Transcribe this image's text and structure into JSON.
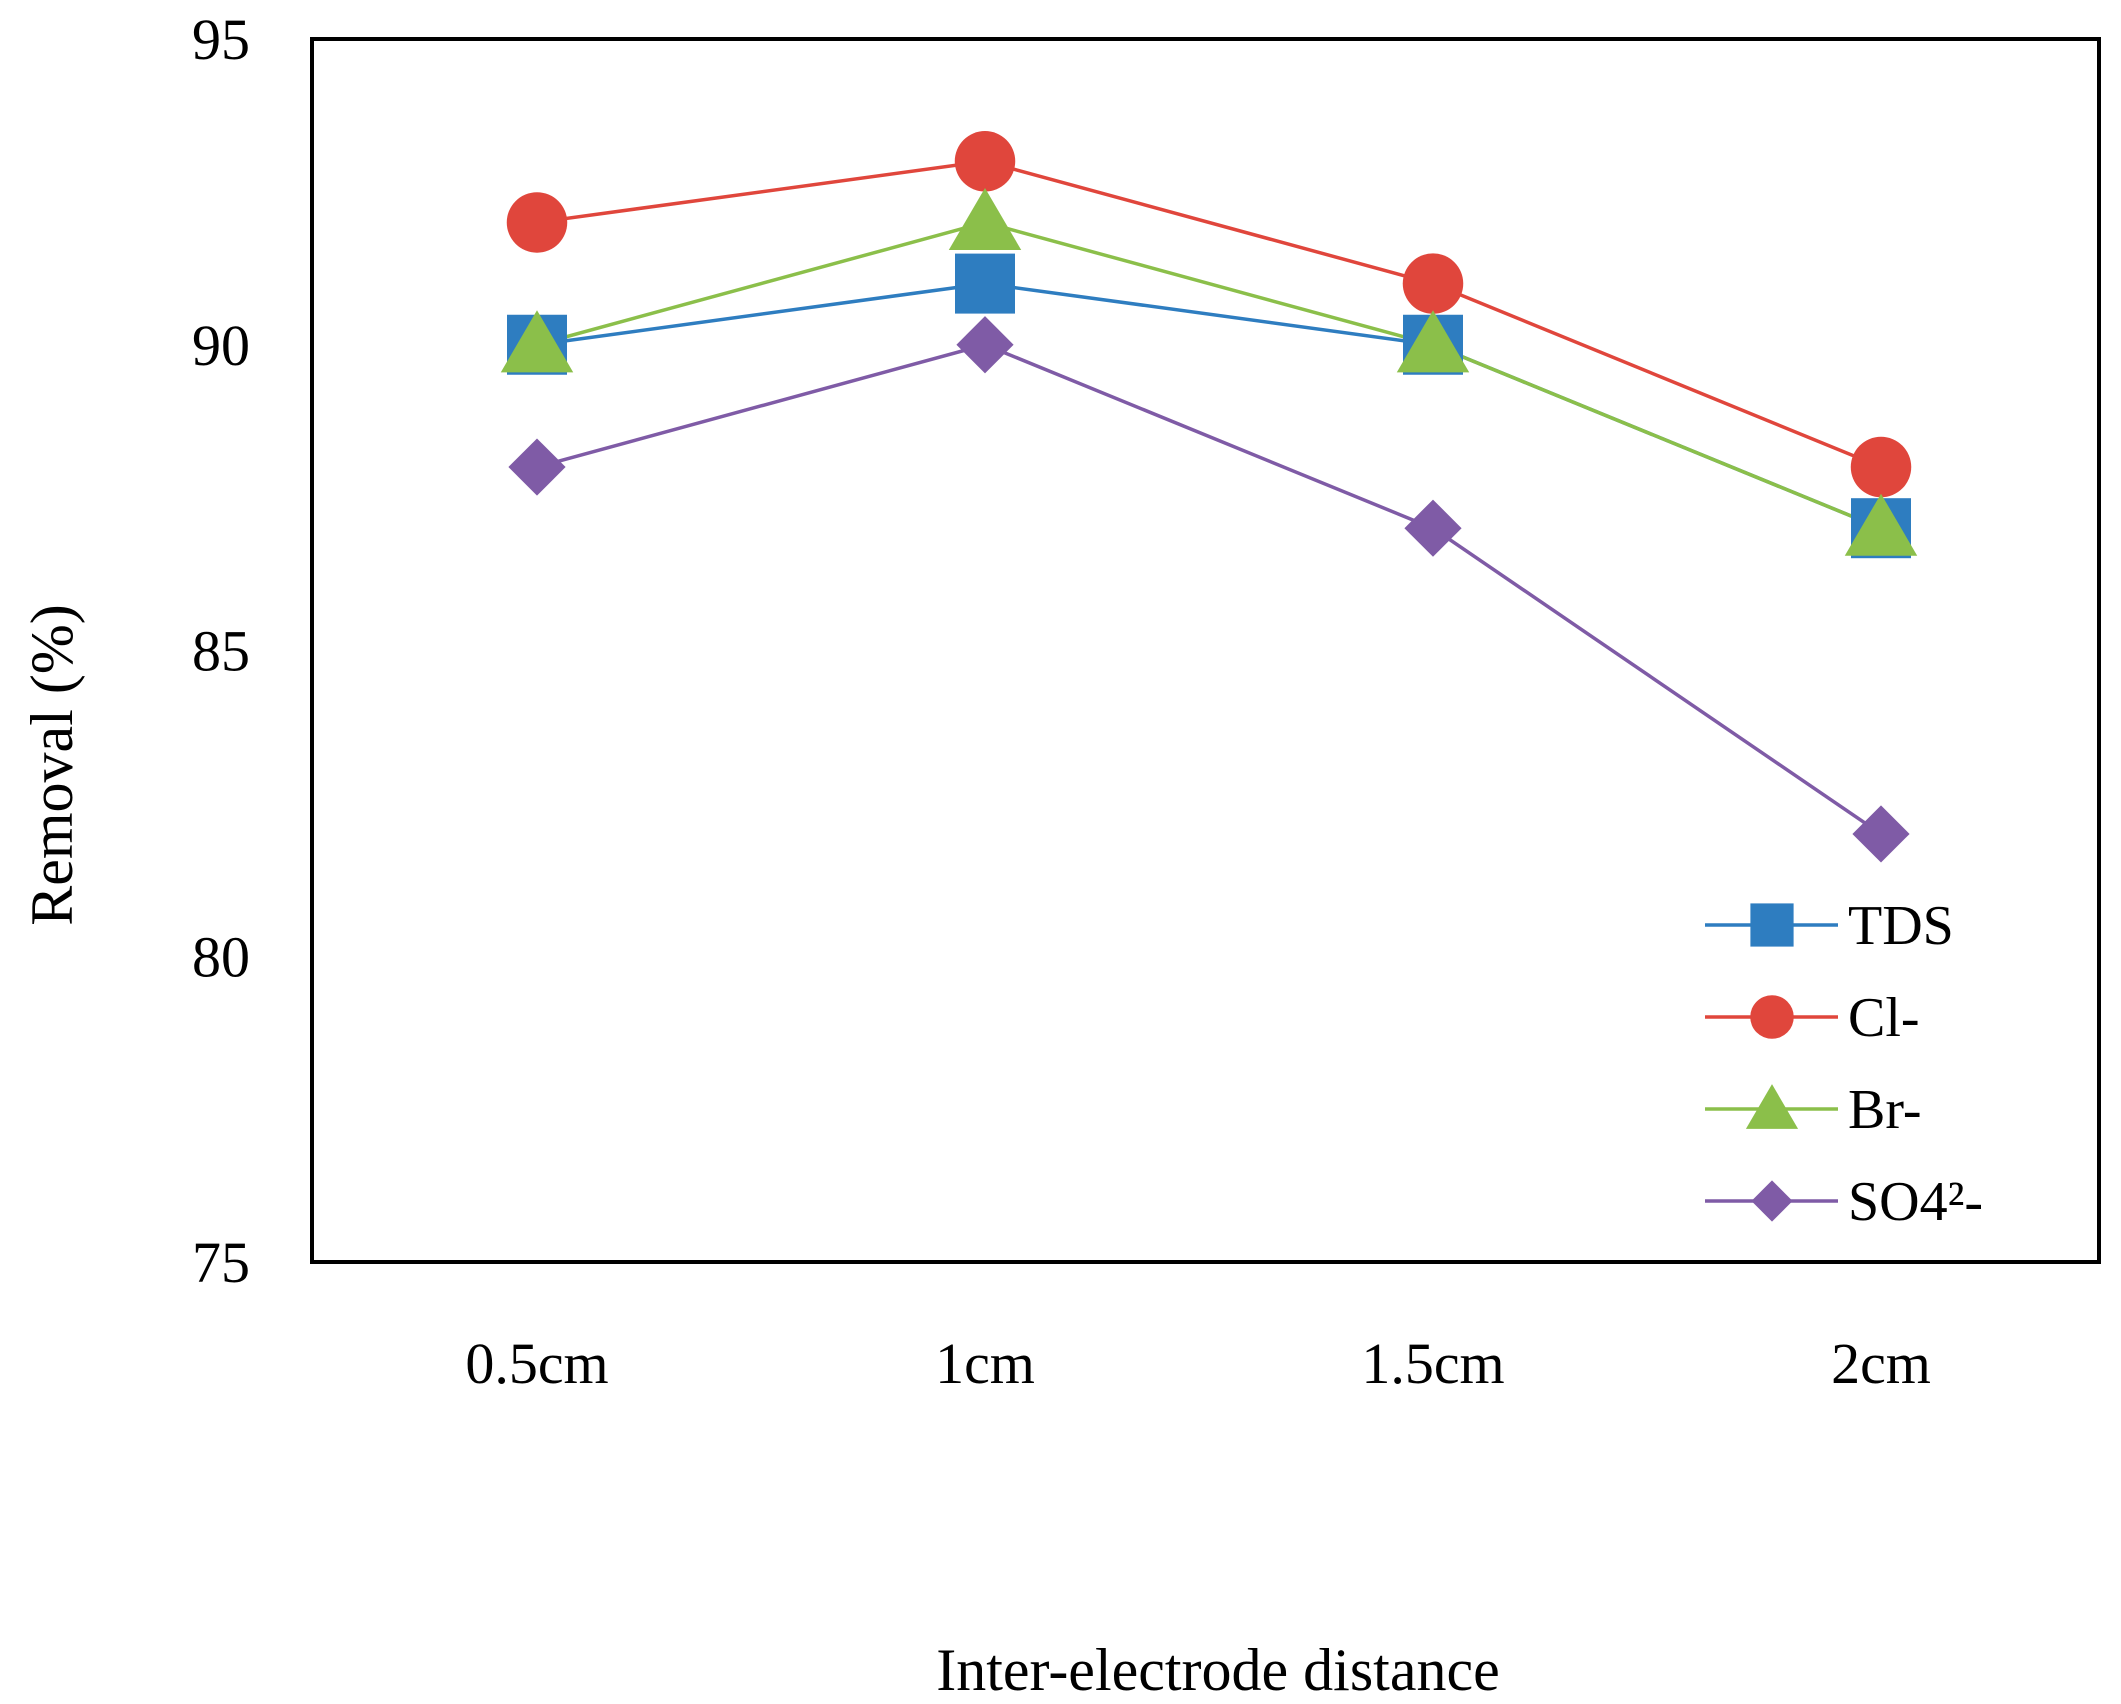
{
  "chart_data": {
    "type": "line",
    "title": "",
    "xlabel": "Inter-electrode distance",
    "ylabel": "Removal (%)",
    "categories": [
      "0.5cm",
      "1cm",
      "1.5cm",
      "2cm"
    ],
    "ylim": [
      75,
      95
    ],
    "yticks": [
      75,
      80,
      85,
      90,
      95
    ],
    "grid": false,
    "legend_position": "bottom-right",
    "series": [
      {
        "name": "TDS",
        "marker": "square",
        "color": "#2e7dc0",
        "values": [
          90,
          91,
          90,
          87
        ]
      },
      {
        "name": "Cl-",
        "marker": "circle",
        "color": "#e0463c",
        "values": [
          92,
          93,
          91,
          88
        ]
      },
      {
        "name": "Br-",
        "marker": "triangle",
        "color": "#8bbf4a",
        "values": [
          90,
          92,
          90,
          87
        ]
      },
      {
        "name": "SO4²-",
        "marker": "diamond",
        "color": "#7f5ba6",
        "values": [
          88,
          90,
          87,
          82
        ]
      }
    ]
  }
}
